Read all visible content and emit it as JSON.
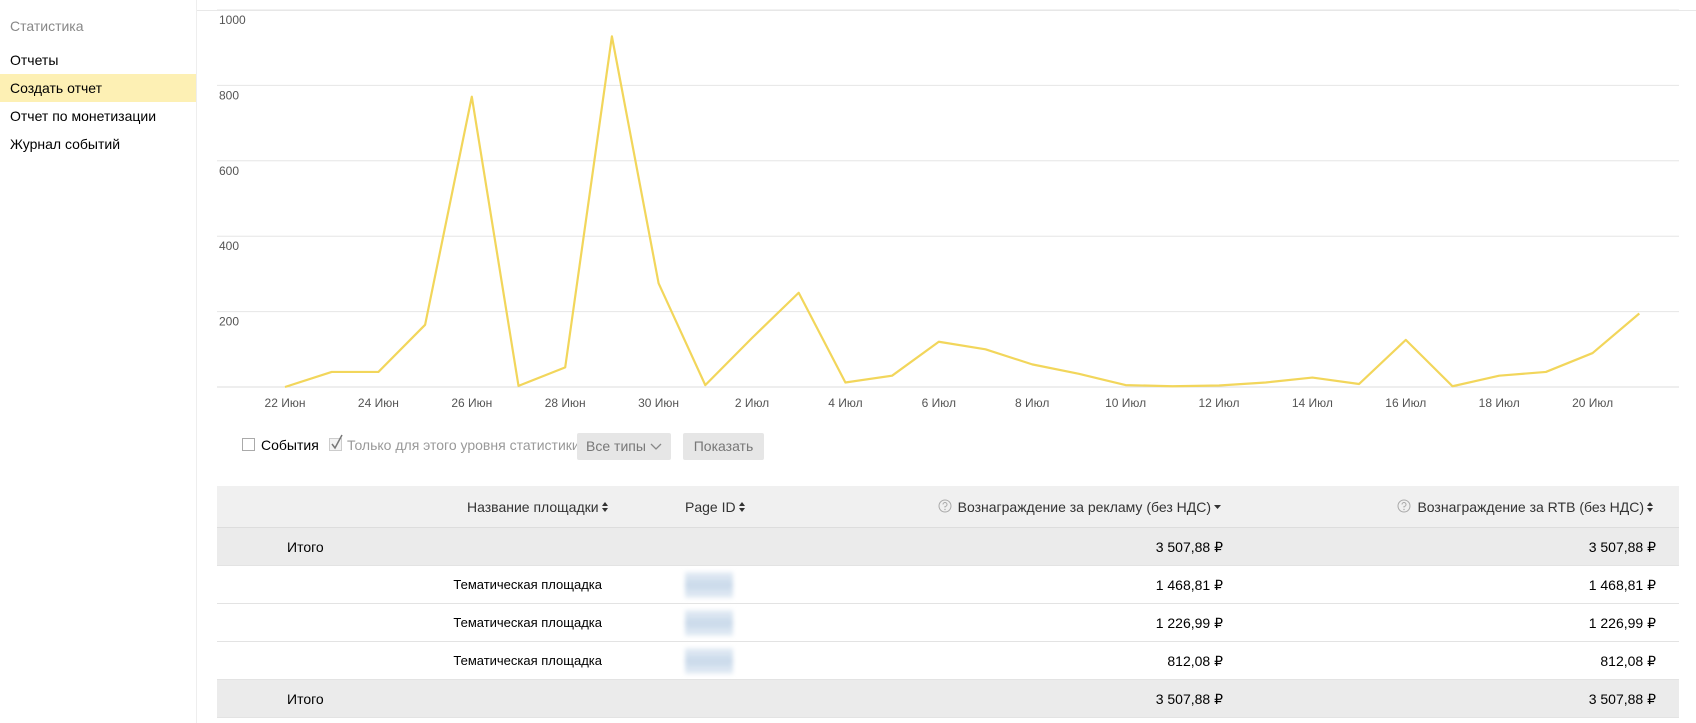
{
  "sidebar": {
    "title": "Статистика",
    "items": [
      "Отчеты",
      "Создать отчет",
      "Отчет по монетизации",
      "Журнал событий"
    ],
    "active": 1
  },
  "chart_data": {
    "type": "line",
    "color": "#f2d65b",
    "grid": true,
    "categories": [
      "22 Июн",
      null,
      "24 Июн",
      null,
      "26 Июн",
      null,
      "28 Июн",
      null,
      "30 Июн",
      null,
      "2 Июл",
      null,
      "4 Июл",
      null,
      "6 Июл",
      null,
      "8 Июл",
      null,
      "10 Июл",
      null,
      "12 Июл",
      null,
      "14 Июл",
      null,
      "16 Июл",
      null,
      "18 Июл",
      null,
      "20 Июл",
      null
    ],
    "values": [
      0,
      40,
      40,
      165,
      770,
      3,
      52,
      930,
      275,
      5,
      130,
      250,
      12,
      30,
      120,
      100,
      60,
      35,
      5,
      2,
      4,
      12,
      25,
      8,
      125,
      2,
      30,
      40,
      90,
      195
    ],
    "ylim": [
      0,
      1000
    ],
    "yticks": [
      200,
      400,
      600,
      800,
      1000
    ]
  },
  "controls": {
    "events": "События",
    "level_only": "Только для этого уровня статистики",
    "types": "Все типы",
    "show": "Показать"
  },
  "table": {
    "columns": [
      "Название площадки",
      "Page ID",
      "Вознаграждение за рекламу (без НДС)",
      "Вознаграждение за RTB (без НДС)"
    ],
    "total_top": {
      "label": "Итого",
      "ad": "3 507,88 ₽",
      "rtb": "3 507,88 ₽"
    },
    "rows": [
      {
        "name": "Тематическая площадка",
        "ad": "1 468,81 ₽",
        "rtb": "1 468,81 ₽"
      },
      {
        "name": "Тематическая площадка",
        "ad": "1 226,99 ₽",
        "rtb": "1 226,99 ₽"
      },
      {
        "name": "Тематическая площадка",
        "ad": "812,08 ₽",
        "rtb": "812,08 ₽"
      }
    ],
    "total_bottom": {
      "label": "Итого",
      "ad": "3 507,88 ₽",
      "rtb": "3 507,88 ₽"
    }
  }
}
